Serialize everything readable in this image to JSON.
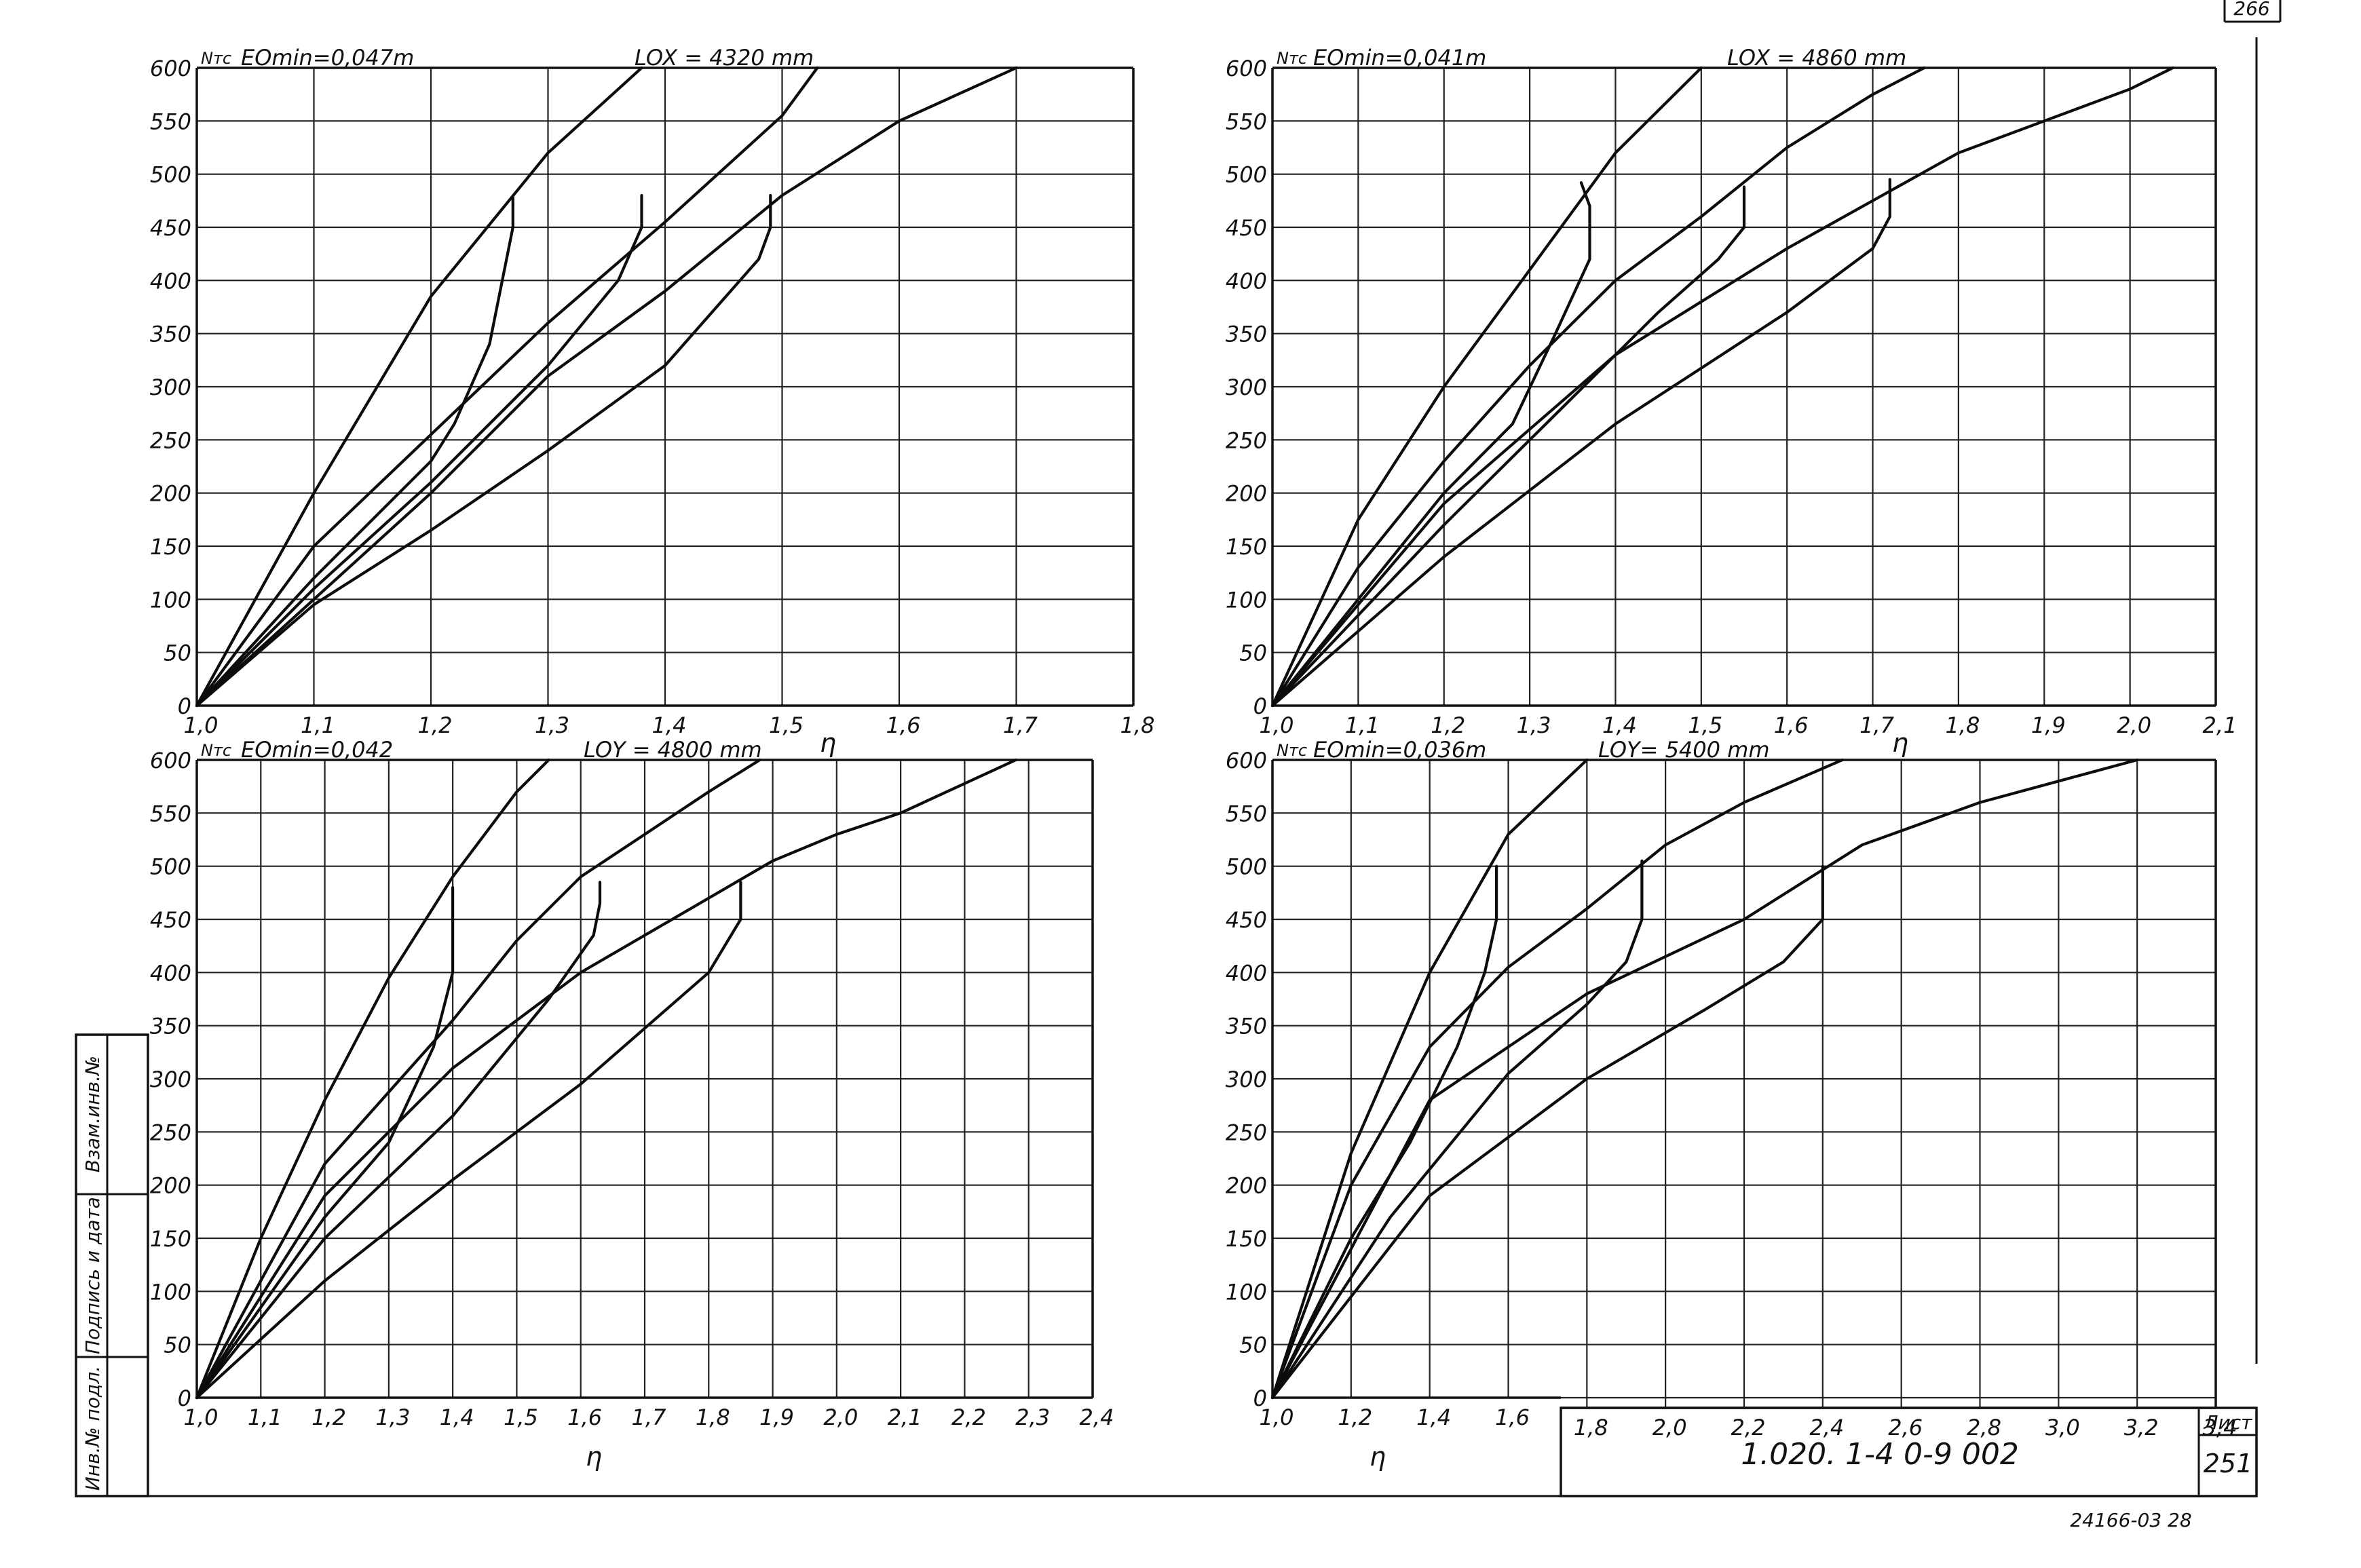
{
  "sheet": {
    "corner_number": "266",
    "stamp_title": "1.020. 1-4   0-9   002",
    "list_label": "Лист",
    "list_number": "251",
    "bottom_code": "24166-03   28",
    "side_labels": [
      "Инв.№ подл.",
      "Подпись и дата",
      "Взам.инв.№"
    ]
  },
  "chart_data": [
    {
      "type": "line",
      "yname": "Nтс",
      "eo_label": "EOmin=0,047m",
      "l_label": "LOX = 4320 mm",
      "xlabel": "η",
      "xlim": [
        1.0,
        1.8
      ],
      "ylim": [
        0,
        600
      ],
      "xticks": [
        1.0,
        1.1,
        1.2,
        1.3,
        1.4,
        1.5,
        1.6,
        1.7,
        1.8
      ],
      "xtick_labels": [
        "1,0",
        "1,1",
        "1,2",
        "1,3",
        "1,4",
        "1,5",
        "1,6",
        "1,7",
        "1,8"
      ],
      "yticks": [
        0,
        50,
        100,
        150,
        200,
        250,
        300,
        350,
        400,
        450,
        500,
        550,
        600
      ],
      "ytick_labels": [
        "0",
        "50",
        "100",
        "150",
        "200",
        "250",
        "300",
        "350",
        "400",
        "450",
        "500",
        "550",
        "600"
      ],
      "series": [
        {
          "x": [
            1.0,
            1.1,
            1.2,
            1.3,
            1.35,
            1.38
          ],
          "y": [
            0,
            200,
            385,
            520,
            570,
            600
          ]
        },
        {
          "x": [
            1.0,
            1.1,
            1.2,
            1.3,
            1.4,
            1.5,
            1.53
          ],
          "y": [
            0,
            150,
            255,
            360,
            455,
            555,
            600
          ]
        },
        {
          "x": [
            1.0,
            1.2,
            1.3,
            1.4,
            1.5,
            1.6,
            1.7
          ],
          "y": [
            0,
            200,
            310,
            390,
            480,
            550,
            600
          ]
        },
        {
          "x": [
            1.0,
            1.1,
            1.2,
            1.22,
            1.25,
            1.27,
            1.27
          ],
          "y": [
            0,
            120,
            230,
            265,
            340,
            450,
            478
          ]
        },
        {
          "x": [
            1.0,
            1.1,
            1.2,
            1.3,
            1.36,
            1.38,
            1.38
          ],
          "y": [
            0,
            110,
            210,
            320,
            400,
            450,
            480
          ]
        },
        {
          "x": [
            1.0,
            1.1,
            1.2,
            1.3,
            1.4,
            1.48,
            1.49,
            1.49
          ],
          "y": [
            0,
            95,
            165,
            240,
            320,
            420,
            450,
            480
          ]
        }
      ]
    },
    {
      "type": "line",
      "yname": "Nтс",
      "eo_label": "EOmin=0,041m",
      "l_label": "LOX = 4860 mm",
      "xlabel": "η",
      "xlim": [
        1.0,
        2.1
      ],
      "ylim": [
        0,
        600
      ],
      "xticks": [
        1.0,
        1.1,
        1.2,
        1.3,
        1.4,
        1.5,
        1.6,
        1.7,
        1.8,
        1.9,
        2.0,
        2.1
      ],
      "xtick_labels": [
        "1,0",
        "1,1",
        "1,2",
        "1,3",
        "1,4",
        "1,5",
        "1,6",
        "1,7",
        "1,8",
        "1,9",
        "2,0",
        "2,1"
      ],
      "yticks": [
        0,
        50,
        100,
        150,
        200,
        250,
        300,
        350,
        400,
        450,
        500,
        550,
        600
      ],
      "ytick_labels": [
        "0",
        "50",
        "100",
        "150",
        "200",
        "250",
        "300",
        "350",
        "400",
        "450",
        "500",
        "550",
        "600"
      ],
      "series": [
        {
          "x": [
            1.0,
            1.1,
            1.2,
            1.3,
            1.4,
            1.5
          ],
          "y": [
            0,
            175,
            300,
            410,
            520,
            600
          ]
        },
        {
          "x": [
            1.0,
            1.1,
            1.2,
            1.3,
            1.4,
            1.5,
            1.6,
            1.7,
            1.76
          ],
          "y": [
            0,
            130,
            230,
            320,
            400,
            460,
            525,
            575,
            600
          ]
        },
        {
          "x": [
            1.0,
            1.2,
            1.4,
            1.6,
            1.8,
            1.9,
            2.0,
            2.05
          ],
          "y": [
            0,
            190,
            330,
            430,
            520,
            550,
            580,
            600
          ]
        },
        {
          "x": [
            1.0,
            1.1,
            1.2,
            1.28,
            1.33,
            1.37,
            1.37,
            1.36
          ],
          "y": [
            0,
            100,
            200,
            265,
            350,
            420,
            470,
            492
          ]
        },
        {
          "x": [
            1.0,
            1.2,
            1.35,
            1.45,
            1.52,
            1.55,
            1.55
          ],
          "y": [
            0,
            170,
            290,
            370,
            420,
            450,
            488
          ]
        },
        {
          "x": [
            1.0,
            1.2,
            1.4,
            1.6,
            1.7,
            1.72,
            1.72
          ],
          "y": [
            0,
            140,
            265,
            370,
            430,
            460,
            495
          ]
        }
      ]
    },
    {
      "type": "line",
      "yname": "Nтс",
      "eo_label": "EOmin=0,042",
      "l_label": "LOY = 4800 mm",
      "xlabel": "η",
      "xlim": [
        1.0,
        2.4
      ],
      "ylim": [
        0,
        600
      ],
      "xticks": [
        1.0,
        1.1,
        1.2,
        1.3,
        1.4,
        1.5,
        1.6,
        1.7,
        1.8,
        1.9,
        2.0,
        2.1,
        2.2,
        2.3,
        2.4
      ],
      "xtick_labels": [
        "1,0",
        "1,1",
        "1,2",
        "1,3",
        "1,4",
        "1,5",
        "1,6",
        "1,7",
        "1,8",
        "1,9",
        "2,0",
        "2,1",
        "2,2",
        "2,3",
        "2,4"
      ],
      "yticks": [
        0,
        50,
        100,
        150,
        200,
        250,
        300,
        350,
        400,
        450,
        500,
        550,
        600
      ],
      "ytick_labels": [
        "0",
        "50",
        "100",
        "150",
        "200",
        "250",
        "300",
        "350",
        "400",
        "450",
        "500",
        "550",
        "600"
      ],
      "series": [
        {
          "x": [
            1.0,
            1.1,
            1.2,
            1.3,
            1.4,
            1.5,
            1.55
          ],
          "y": [
            0,
            150,
            280,
            395,
            490,
            570,
            600
          ]
        },
        {
          "x": [
            1.0,
            1.2,
            1.4,
            1.5,
            1.6,
            1.7,
            1.8,
            1.88
          ],
          "y": [
            0,
            220,
            355,
            430,
            490,
            530,
            570,
            600
          ]
        },
        {
          "x": [
            1.0,
            1.2,
            1.4,
            1.6,
            1.8,
            1.9,
            2.0,
            2.1,
            2.28
          ],
          "y": [
            0,
            190,
            310,
            400,
            470,
            505,
            530,
            550,
            600
          ]
        },
        {
          "x": [
            1.0,
            1.2,
            1.3,
            1.37,
            1.4,
            1.4,
            1.4
          ],
          "y": [
            0,
            170,
            240,
            330,
            400,
            450,
            480
          ]
        },
        {
          "x": [
            1.0,
            1.2,
            1.4,
            1.55,
            1.62,
            1.63,
            1.63
          ],
          "y": [
            0,
            150,
            265,
            375,
            435,
            465,
            485
          ]
        },
        {
          "x": [
            1.0,
            1.2,
            1.4,
            1.6,
            1.8,
            1.85,
            1.85
          ],
          "y": [
            0,
            110,
            205,
            295,
            400,
            450,
            485
          ]
        }
      ]
    },
    {
      "type": "line",
      "yname": "Nтс",
      "eo_label": "EOmin=0,036m",
      "l_label": "LOY= 5400 mm",
      "xlabel": "η",
      "xlim": [
        1.0,
        3.4
      ],
      "ylim": [
        0,
        600
      ],
      "xticks": [
        1.0,
        1.2,
        1.4,
        1.6,
        1.8,
        2.0,
        2.2,
        2.4,
        2.6,
        2.8,
        3.0,
        3.2,
        3.4
      ],
      "xtick_labels": [
        "1,0",
        "1,2",
        "1,4",
        "1,6",
        "1,8",
        "2,0",
        "2,2",
        "2,4",
        "2,6",
        "2,8",
        "3,0",
        "3,2",
        "3,4"
      ],
      "yticks": [
        0,
        50,
        100,
        150,
        200,
        250,
        300,
        350,
        400,
        450,
        500,
        550,
        600
      ],
      "ytick_labels": [
        "0",
        "50",
        "100",
        "150",
        "200",
        "250",
        "300",
        "350",
        "400",
        "450",
        "500",
        "550",
        "600"
      ],
      "series": [
        {
          "x": [
            1.0,
            1.2,
            1.4,
            1.6,
            1.8
          ],
          "y": [
            0,
            230,
            400,
            530,
            600
          ]
        },
        {
          "x": [
            1.0,
            1.2,
            1.4,
            1.6,
            1.8,
            2.0,
            2.2,
            2.45
          ],
          "y": [
            0,
            200,
            330,
            405,
            460,
            520,
            560,
            600
          ]
        },
        {
          "x": [
            1.0,
            1.4,
            1.8,
            2.2,
            2.5,
            2.8,
            3.0,
            3.2
          ],
          "y": [
            0,
            280,
            380,
            450,
            520,
            560,
            580,
            600
          ]
        },
        {
          "x": [
            1.0,
            1.2,
            1.35,
            1.47,
            1.54,
            1.57,
            1.57
          ],
          "y": [
            0,
            150,
            240,
            330,
            400,
            450,
            500
          ]
        },
        {
          "x": [
            1.0,
            1.3,
            1.6,
            1.8,
            1.9,
            1.94,
            1.94
          ],
          "y": [
            0,
            170,
            305,
            370,
            410,
            450,
            505
          ]
        },
        {
          "x": [
            1.0,
            1.4,
            1.8,
            2.1,
            2.3,
            2.4,
            2.4
          ],
          "y": [
            0,
            190,
            300,
            365,
            410,
            450,
            500
          ]
        }
      ]
    }
  ]
}
